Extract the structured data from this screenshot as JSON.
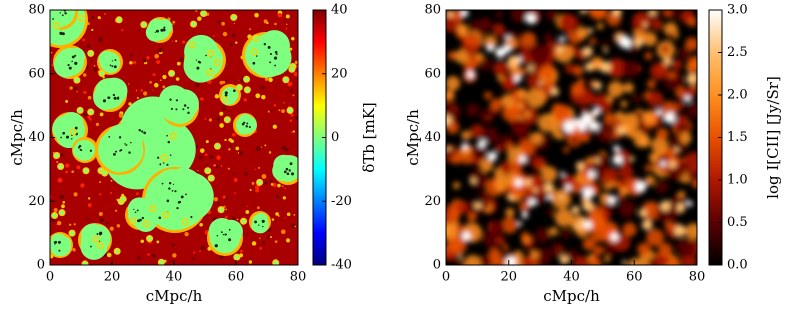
{
  "chart_data": [
    {
      "type": "heatmap",
      "xlabel": "cMpc/h",
      "ylabel": "cMpc/h",
      "xlim": [
        0,
        80
      ],
      "ylim": [
        0,
        80
      ],
      "xticks": [
        0,
        20,
        40,
        60,
        80
      ],
      "yticks": [
        0,
        20,
        40,
        60,
        80
      ],
      "colorbar": {
        "label": "δTb [mK]",
        "lim": [
          -40,
          40
        ],
        "ticks": [
          -40,
          -20,
          0,
          20,
          40
        ],
        "colors": [
          "#00007f",
          "#0000ff",
          "#007fff",
          "#00ffff",
          "#7fff7f",
          "#ffff00",
          "#ff7f00",
          "#ff0000",
          "#7f0000"
        ]
      }
    },
    {
      "type": "heatmap",
      "xlabel": "cMpc/h",
      "ylabel": "cMpc/h",
      "xlim": [
        0,
        80
      ],
      "ylim": [
        0,
        80
      ],
      "xticks": [
        0,
        20,
        40,
        60,
        80
      ],
      "yticks": [
        0,
        20,
        40,
        60,
        80
      ],
      "colorbar": {
        "label": "log I[CII] [Jy/Sr]",
        "lim": [
          0,
          3
        ],
        "ticks": [
          {
            "value": 0,
            "label": "0.0"
          },
          0.5,
          {
            "value": 1,
            "label": "1.0"
          },
          1.5,
          {
            "value": 2,
            "label": "2.0"
          },
          2.5,
          {
            "value": 3,
            "label": "3.0"
          }
        ],
        "colors": [
          "#000000",
          "#5a0000",
          "#b01800",
          "#e85000",
          "#ff9020",
          "#ffc070",
          "#ffffff"
        ]
      }
    }
  ]
}
